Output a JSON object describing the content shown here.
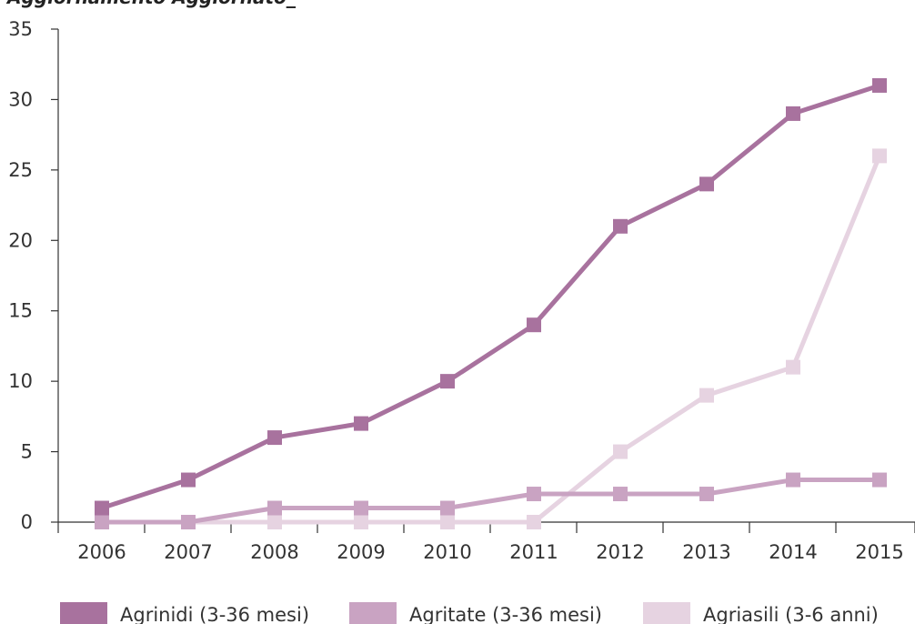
{
  "chart_data": {
    "type": "line",
    "clipped_top_text": "Aggiornamento Aggiornato_",
    "categories": [
      "2006",
      "2007",
      "2008",
      "2009",
      "2010",
      "2011",
      "2012",
      "2013",
      "2014",
      "2015"
    ],
    "y_ticks": [
      "0",
      "5",
      "10",
      "15",
      "20",
      "25",
      "30",
      "35"
    ],
    "ylim": [
      0,
      35
    ],
    "grid": false,
    "legend_position": "bottom",
    "series": [
      {
        "name": "Agriasili (3-6 anni)",
        "color": "#e6d3e1",
        "values": [
          0,
          0,
          0,
          0,
          0,
          0,
          5,
          9,
          11,
          26
        ]
      },
      {
        "name": "Agritate (3-36 mesi)",
        "color": "#c9a3c2",
        "values": [
          0,
          0,
          1,
          1,
          1,
          2,
          2,
          2,
          3,
          3
        ]
      },
      {
        "name": "Agrinidi (3-36 mesi)",
        "color": "#a8729e",
        "values": [
          1,
          3,
          6,
          7,
          10,
          14,
          21,
          24,
          29,
          31
        ]
      }
    ],
    "legend": [
      "Agrinidi (3-36 mesi)",
      "Agritate (3-36 mesi)",
      "Agriasili (3-6 anni)"
    ]
  }
}
